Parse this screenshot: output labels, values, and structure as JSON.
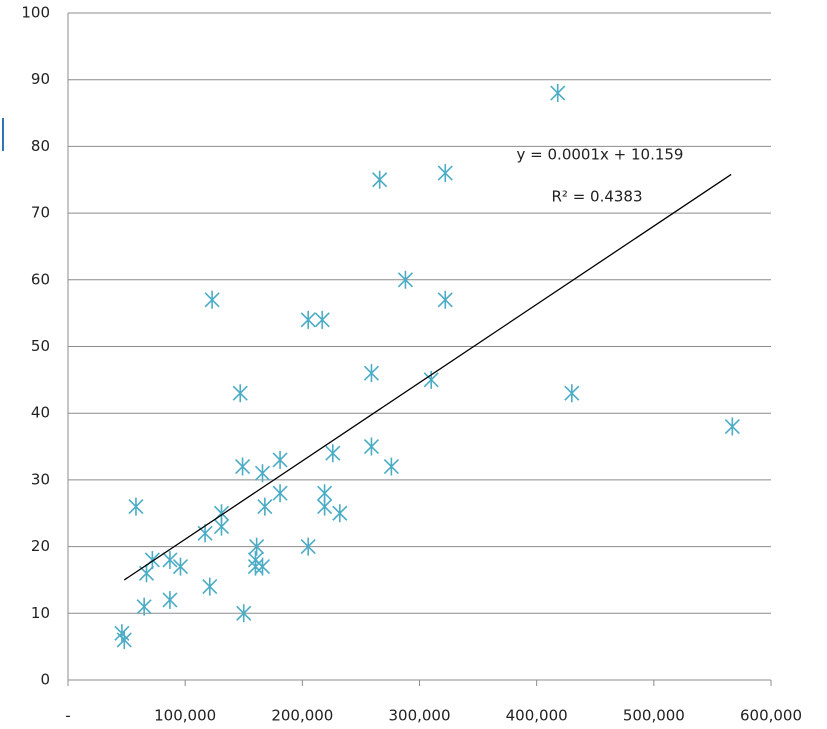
{
  "chart_data": {
    "type": "scatter",
    "xlim": [
      0,
      600000
    ],
    "ylim": [
      0,
      100
    ],
    "xticks": [
      {
        "value": 0,
        "label": "-"
      },
      {
        "value": 100000,
        "label": "100,000"
      },
      {
        "value": 200000,
        "label": "200,000"
      },
      {
        "value": 300000,
        "label": "300,000"
      },
      {
        "value": 400000,
        "label": "400,000"
      },
      {
        "value": 500000,
        "label": "500,000"
      },
      {
        "value": 600000,
        "label": "600,000"
      }
    ],
    "yticks": [
      0,
      10,
      20,
      30,
      40,
      50,
      60,
      70,
      80,
      90,
      100
    ],
    "grid": true,
    "series": [
      {
        "color": "#4bacc6",
        "x": [
          418000,
          266000,
          322000,
          288000,
          322000,
          123000,
          205000,
          217000,
          259000,
          310000,
          147000,
          430000,
          567000,
          259000,
          226000,
          181000,
          149000,
          276000,
          166000,
          181000,
          219000,
          168000,
          219000,
          232000,
          58000,
          131000,
          131000,
          117000,
          161000,
          205000,
          72000,
          87000,
          160000,
          96000,
          160000,
          166000,
          67000,
          121000,
          87000,
          65000,
          150000,
          46000,
          48000
        ],
        "values": [
          88,
          75,
          76,
          60,
          57,
          57,
          54,
          54,
          46,
          45,
          43,
          43,
          38,
          35,
          34,
          33,
          32,
          32,
          31,
          28,
          28,
          26,
          26,
          25,
          26,
          25,
          23,
          22,
          20,
          20,
          18,
          18,
          18,
          17,
          17,
          17,
          16,
          14,
          12,
          11,
          10,
          7,
          6
        ]
      }
    ],
    "trendline": {
      "color": "#000000",
      "x": [
        48000,
        566000
      ],
      "values": [
        15,
        75.8
      ]
    },
    "annotations": [
      "y = 0.0001x + 10.159",
      "R² = 0.4383"
    ]
  }
}
